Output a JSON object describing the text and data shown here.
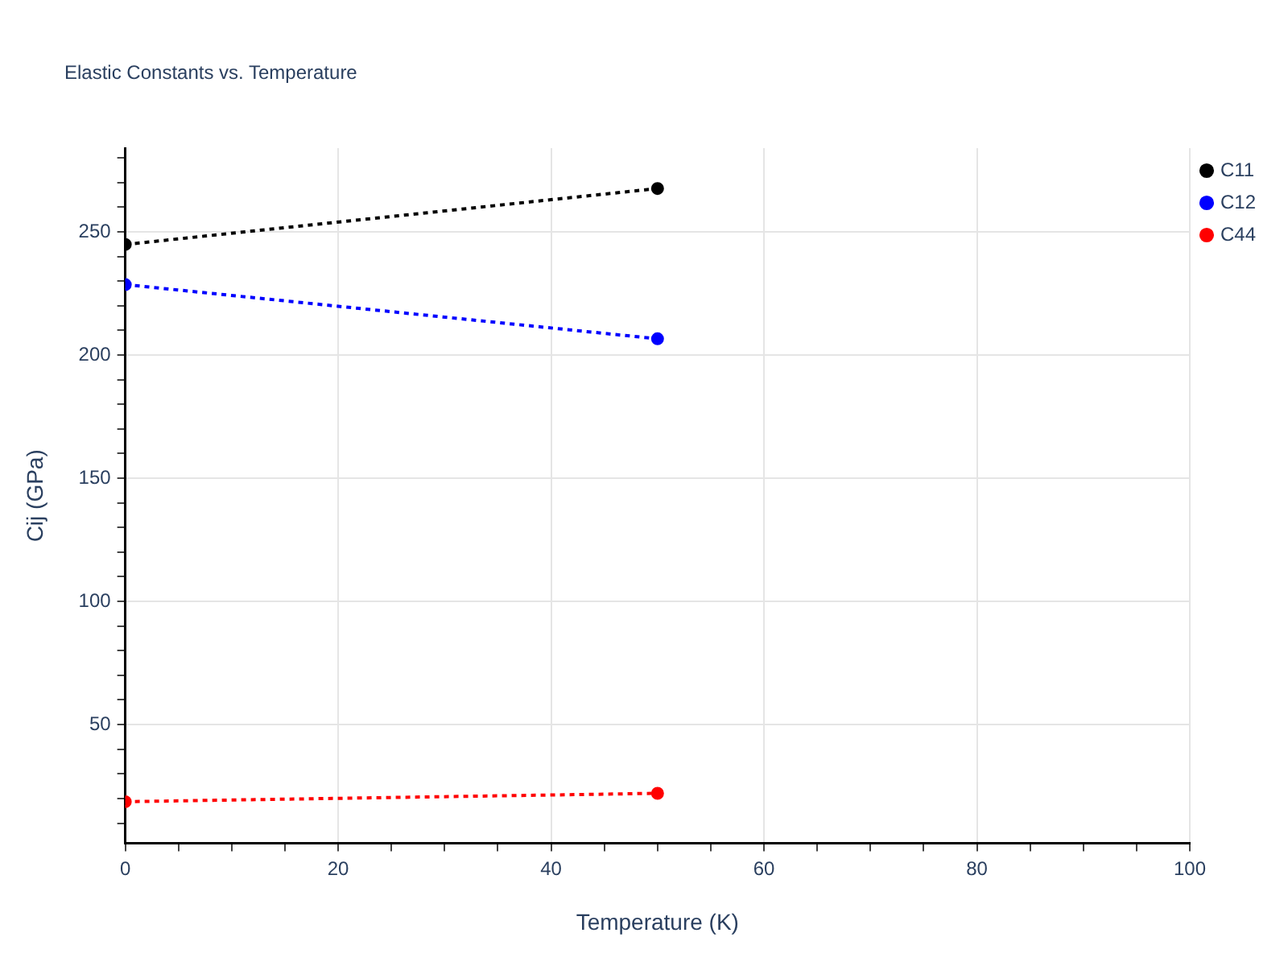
{
  "chart_data": {
    "type": "line",
    "title": "Elastic Constants vs. Temperature",
    "xlabel": "Temperature (K)",
    "ylabel": "Cij (GPa)",
    "x": [
      0,
      50
    ],
    "series": [
      {
        "name": "C11",
        "color": "#000000",
        "values": [
          244.9,
          267.6
        ]
      },
      {
        "name": "C12",
        "color": "#0000ff",
        "values": [
          228.6,
          206.6
        ]
      },
      {
        "name": "C44",
        "color": "#ff0000",
        "values": [
          18.7,
          22.1
        ]
      }
    ],
    "xlim": [
      0,
      100
    ],
    "xticks": [
      0,
      {
        "value": 5,
        "label": null
      },
      {
        "value": 10,
        "label": null
      },
      {
        "value": 15,
        "label": null
      },
      20,
      {
        "value": 25,
        "label": null
      },
      {
        "value": 30,
        "label": null
      },
      {
        "value": 35,
        "label": null
      },
      40,
      {
        "value": 45,
        "label": null
      },
      {
        "value": 50,
        "label": null
      },
      {
        "value": 55,
        "label": null
      },
      60,
      {
        "value": 65,
        "label": null
      },
      {
        "value": 70,
        "label": null
      },
      {
        "value": 75,
        "label": null
      },
      80,
      {
        "value": 85,
        "label": null
      },
      {
        "value": 90,
        "label": null
      },
      {
        "value": 95,
        "label": null
      },
      100
    ],
    "ylim": [
      1.8,
      284
    ],
    "yticks": [
      {
        "value": 10,
        "label": null
      },
      {
        "value": 20,
        "label": null
      },
      {
        "value": 30,
        "label": null
      },
      {
        "value": 40,
        "label": null
      },
      50,
      {
        "value": 60,
        "label": null
      },
      {
        "value": 70,
        "label": null
      },
      {
        "value": 80,
        "label": null
      },
      {
        "value": 90,
        "label": null
      },
      100,
      {
        "value": 110,
        "label": null
      },
      {
        "value": 120,
        "label": null
      },
      {
        "value": 130,
        "label": null
      },
      {
        "value": 140,
        "label": null
      },
      150,
      {
        "value": 160,
        "label": null
      },
      {
        "value": 170,
        "label": null
      },
      {
        "value": 180,
        "label": null
      },
      {
        "value": 190,
        "label": null
      },
      200,
      {
        "value": 210,
        "label": null
      },
      {
        "value": 220,
        "label": null
      },
      {
        "value": 230,
        "label": null
      },
      {
        "value": 240,
        "label": null
      },
      250,
      {
        "value": 260,
        "label": null
      },
      {
        "value": 270,
        "label": null
      },
      {
        "value": 280,
        "label": null
      }
    ],
    "grid": true,
    "legend": "top right",
    "marker": "circle",
    "line_style": "dotted"
  }
}
